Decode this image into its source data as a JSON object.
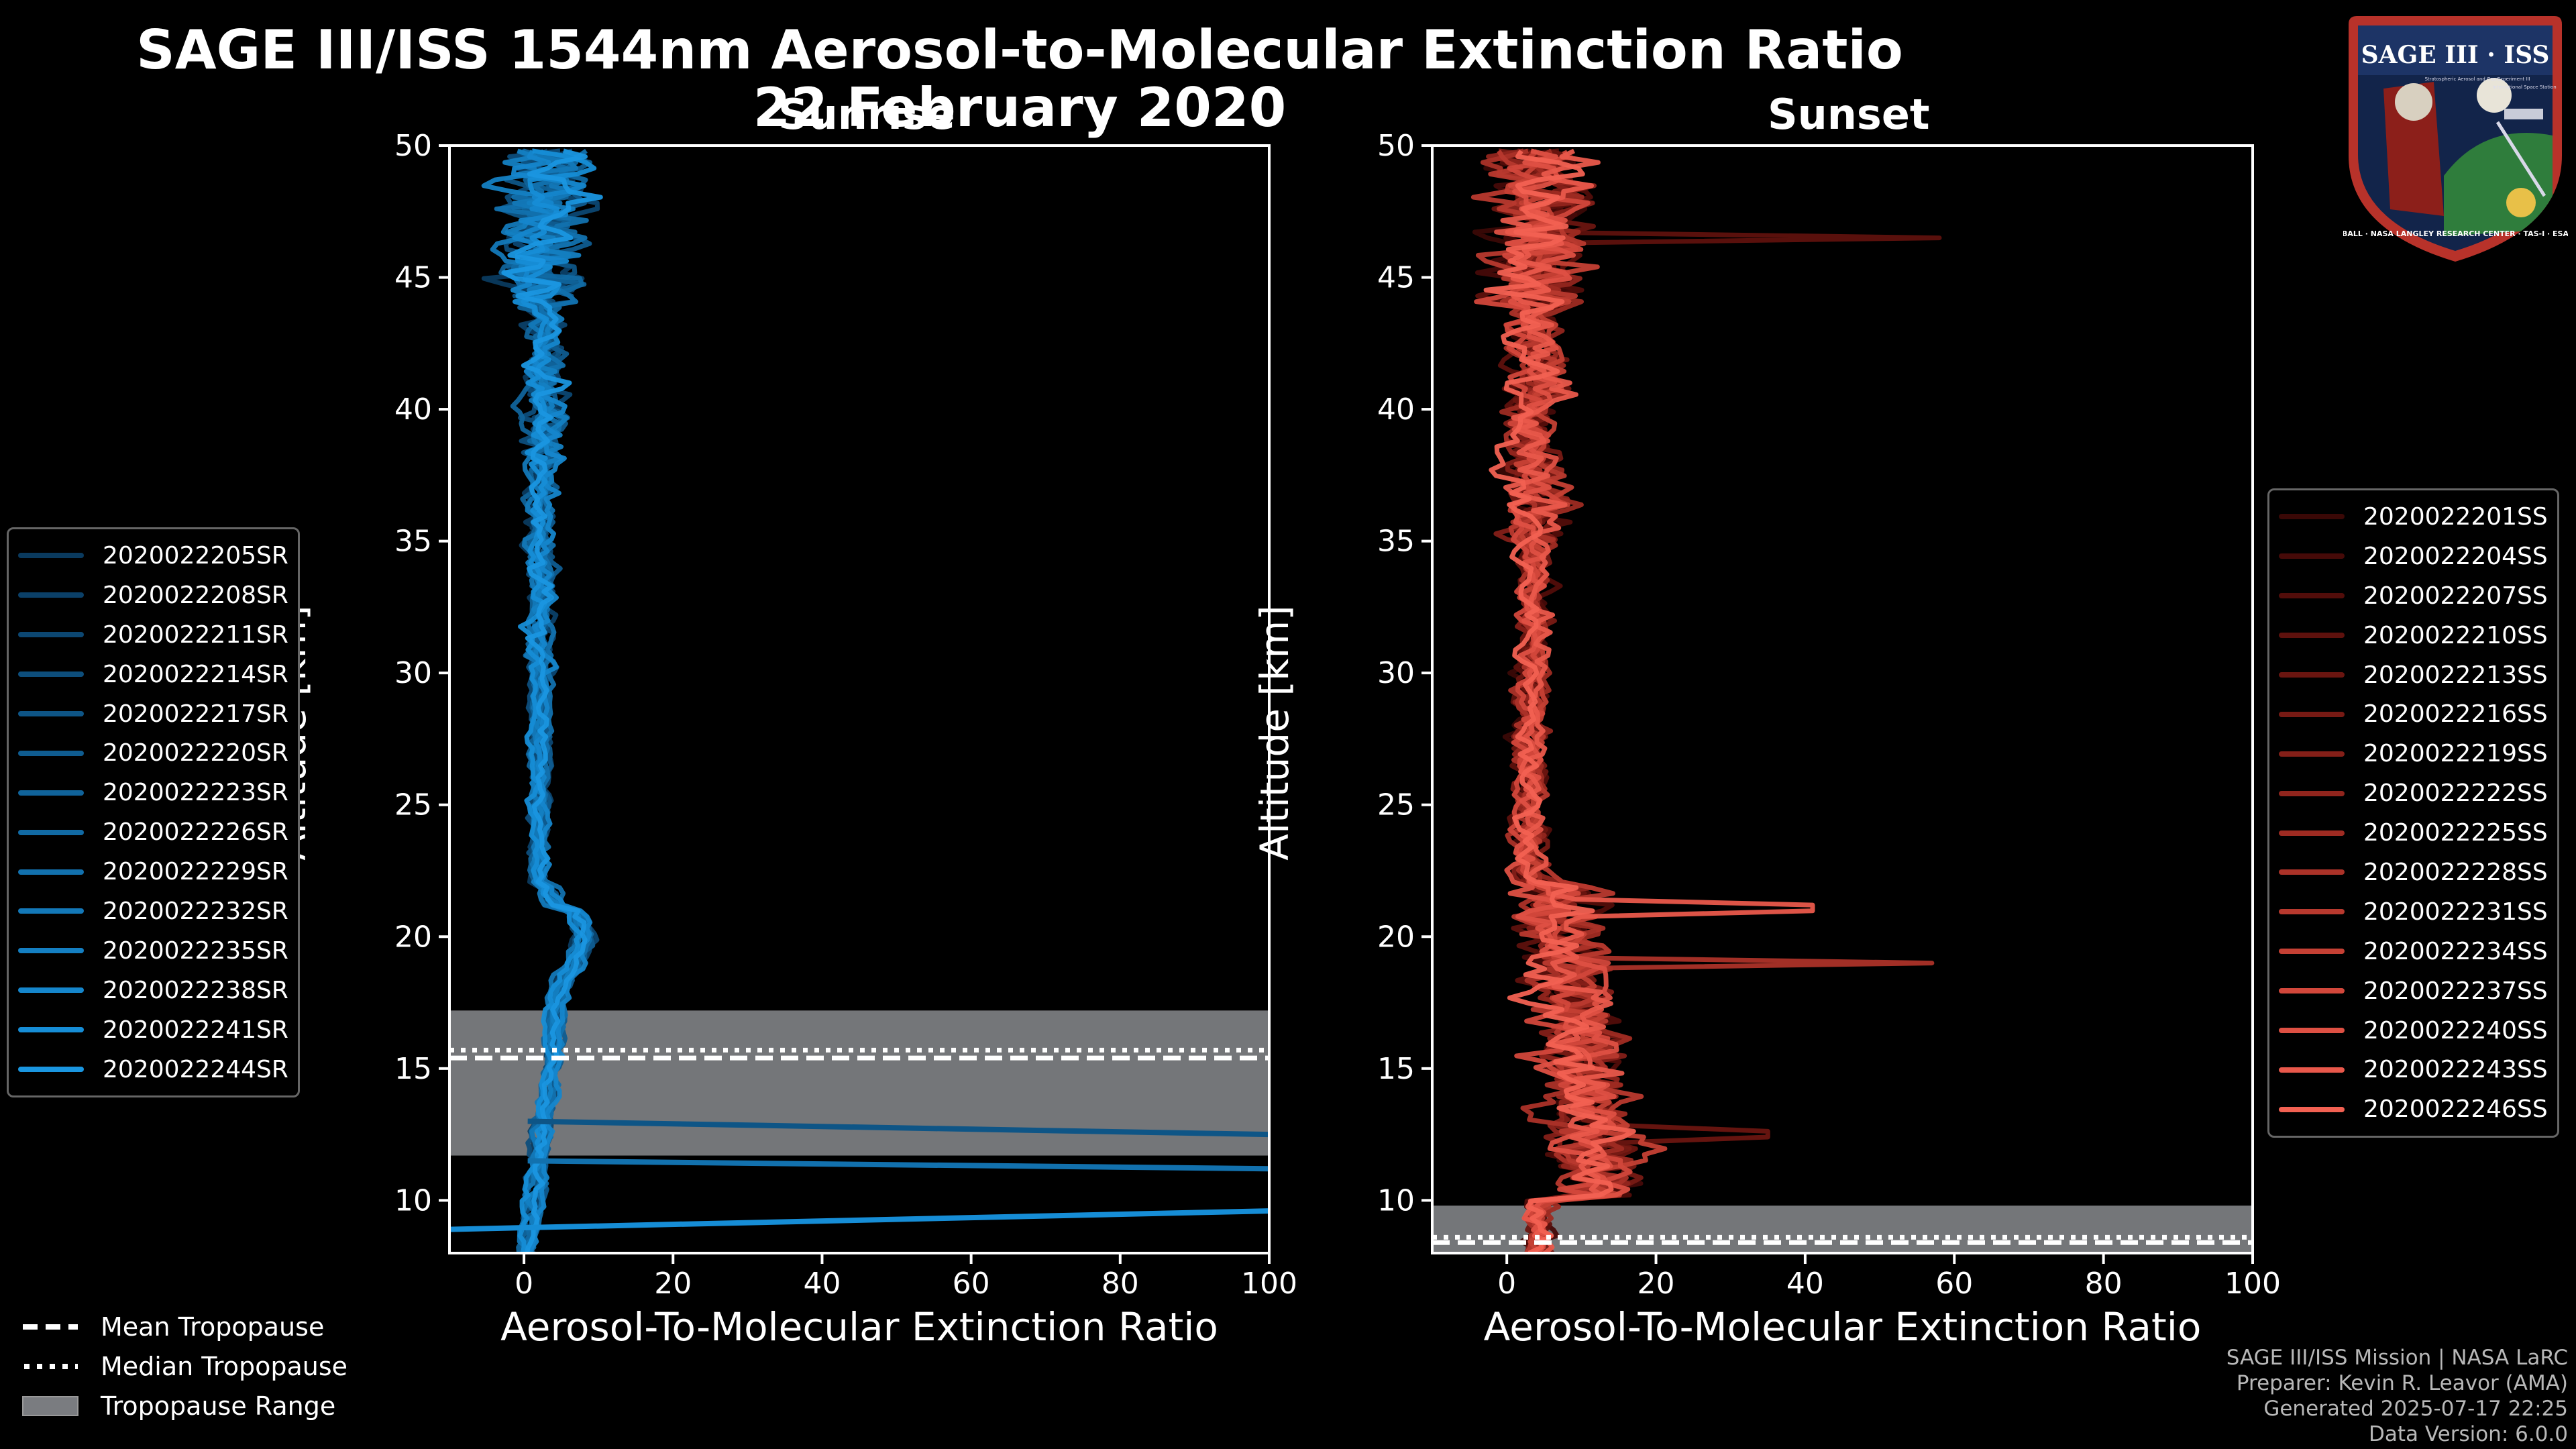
{
  "title": "SAGE III/ISS 1544nm Aerosol-to-Molecular Extinction Ratio",
  "date": "22 February 2020",
  "panels": {
    "left": {
      "title": "Sunrise"
    },
    "right": {
      "title": "Sunset"
    }
  },
  "chart_data": [
    {
      "type": "line",
      "panel": "Sunrise",
      "title": "Sunrise",
      "xlabel": "Aerosol-To-Molecular Extinction Ratio",
      "ylabel": "Altitude [km]",
      "xlim": [
        -10,
        100
      ],
      "ylim": [
        8,
        50
      ],
      "xticks": [
        0,
        20,
        40,
        60,
        80,
        100
      ],
      "yticks": [
        10,
        15,
        20,
        25,
        30,
        35,
        40,
        45,
        50
      ],
      "tropopause": {
        "mean": 15.4,
        "median": 15.7,
        "range": [
          11.7,
          17.2
        ]
      },
      "legend_placement": "left-outside",
      "series": [
        {
          "name": "2020022205SR",
          "color": "#0a3a5e"
        },
        {
          "name": "2020022208SR",
          "color": "#0b4068"
        },
        {
          "name": "2020022211SR",
          "color": "#0c4772"
        },
        {
          "name": "2020022214SR",
          "color": "#0d4e7c"
        },
        {
          "name": "2020022217SR",
          "color": "#0e5586"
        },
        {
          "name": "2020022220SR",
          "color": "#0f5c90"
        },
        {
          "name": "2020022223SR",
          "color": "#10639a"
        },
        {
          "name": "2020022226SR",
          "color": "#116aa4"
        },
        {
          "name": "2020022229SR",
          "color": "#1271ae"
        },
        {
          "name": "2020022232SR",
          "color": "#1378b8"
        },
        {
          "name": "2020022235SR",
          "color": "#147fc2"
        },
        {
          "name": "2020022238SR",
          "color": "#1586cc"
        },
        {
          "name": "2020022241SR",
          "color": "#168dd6"
        },
        {
          "name": "2020022244SR",
          "color": "#1a96e0"
        }
      ],
      "outliers": [
        {
          "points": [
            [
              0.5,
              13.0
            ],
            [
              100,
              12.5
            ]
          ]
        },
        {
          "points": [
            [
              0.5,
              11.5
            ],
            [
              100,
              11.2
            ]
          ]
        },
        {
          "points": [
            [
              -10,
              8.9
            ],
            [
              100,
              9.6
            ]
          ]
        }
      ]
    },
    {
      "type": "line",
      "panel": "Sunset",
      "title": "Sunset",
      "xlabel": "Aerosol-To-Molecular Extinction Ratio",
      "ylabel": "Altitude [km]",
      "xlim": [
        -10,
        100
      ],
      "ylim": [
        8,
        50
      ],
      "xticks": [
        0,
        20,
        40,
        60,
        80,
        100
      ],
      "yticks": [
        10,
        15,
        20,
        25,
        30,
        35,
        40,
        45,
        50
      ],
      "tropopause": {
        "mean": 8.4,
        "median": 8.6,
        "range": [
          8.0,
          9.8
        ]
      },
      "legend_placement": "right-outside",
      "series": [
        {
          "name": "2020022201SS",
          "color": "#3a0806"
        },
        {
          "name": "2020022204SS",
          "color": "#460a08"
        },
        {
          "name": "2020022207SS",
          "color": "#520d0a"
        },
        {
          "name": "2020022210SS",
          "color": "#5e110d"
        },
        {
          "name": "2020022213SS",
          "color": "#6a1510"
        },
        {
          "name": "2020022216SS",
          "color": "#771a14"
        },
        {
          "name": "2020022219SS",
          "color": "#841f18"
        },
        {
          "name": "2020022222SS",
          "color": "#91251d"
        },
        {
          "name": "2020022225SS",
          "color": "#9e2b22"
        },
        {
          "name": "2020022228SS",
          "color": "#ab3228"
        },
        {
          "name": "2020022231SS",
          "color": "#b8392e"
        },
        {
          "name": "2020022234SS",
          "color": "#c54034"
        },
        {
          "name": "2020022237SS",
          "color": "#d2473b"
        },
        {
          "name": "2020022240SS",
          "color": "#de5043"
        },
        {
          "name": "2020022243SS",
          "color": "#e9584b"
        },
        {
          "name": "2020022246SS",
          "color": "#f26152"
        }
      ],
      "spikes": [
        {
          "alt": 46.5,
          "value": 58
        },
        {
          "alt": 21.1,
          "value": 41
        },
        {
          "alt": 19.0,
          "value": 57
        },
        {
          "alt": 12.5,
          "value": 35
        }
      ]
    }
  ],
  "bottom_legend": {
    "mean": "Mean Tropopause",
    "median": "Median Tropopause",
    "range": "Tropopause Range"
  },
  "credits": {
    "line1": "SAGE III/ISS Mission | NASA LaRC",
    "line2": "Preparer: Kevin R. Leavor (AMA)",
    "line3": "Generated 2025-07-17 22:25",
    "line4": "Data Version: 6.0.0"
  },
  "logo": {
    "top": "SAGE III · ISS",
    "bottom": "BALL · NASA LANGLEY RESEARCH CENTER · TAS-I · ESA",
    "sub1": "Stratospheric Aerosol and Gas Experiment III",
    "sub2": "International Space Station"
  },
  "colors": {
    "background": "#000000",
    "tropopause_band": "#7a7c80",
    "sunrise_accent": "#1a96e0",
    "sunset_accent": "#f26152"
  }
}
